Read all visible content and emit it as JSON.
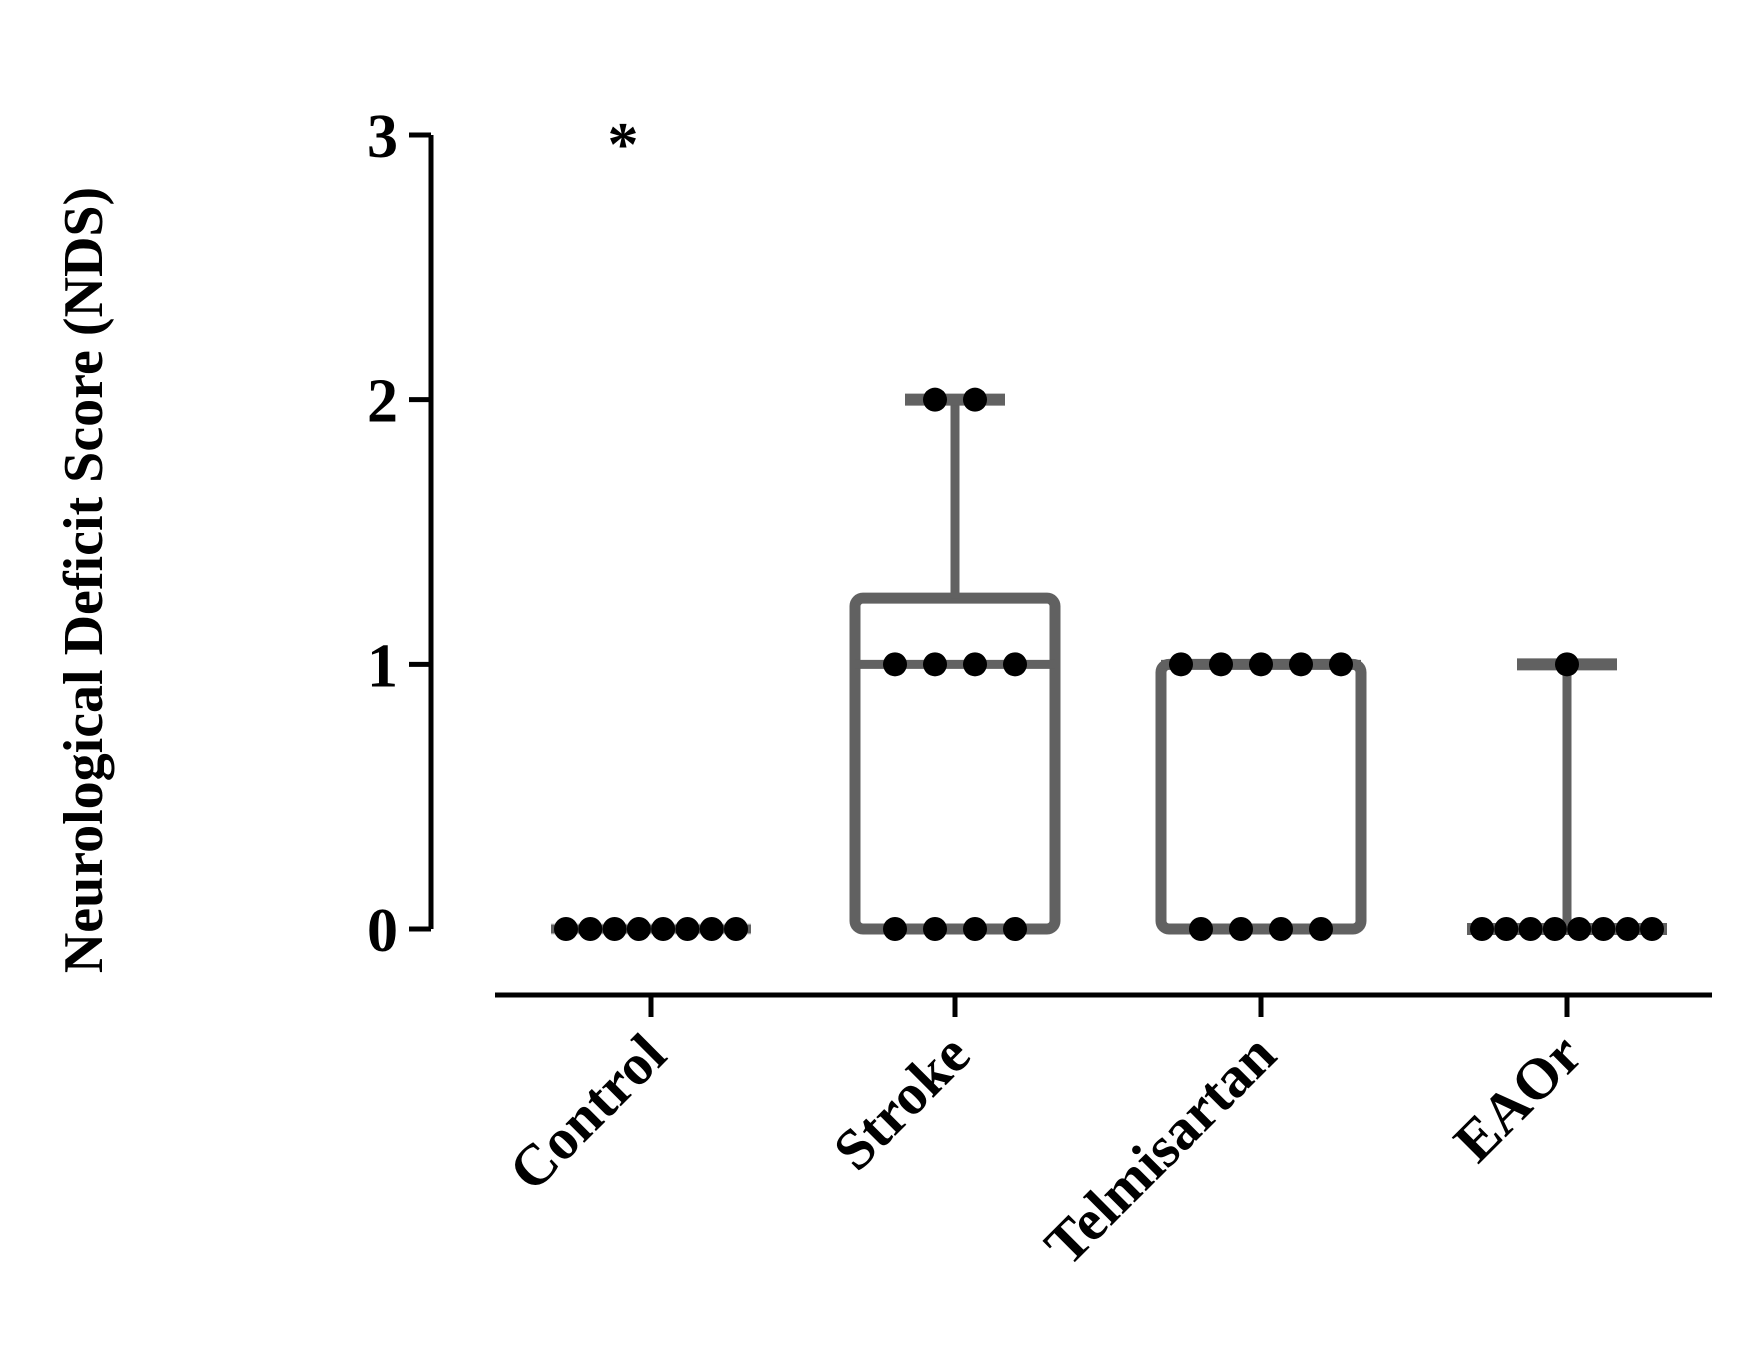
{
  "chart_data": {
    "type": "box",
    "ylabel": "Neurological Deficit Score (NDS)",
    "xlabel": "",
    "ylim": [
      0,
      3
    ],
    "yticks": [
      0,
      1,
      2,
      3
    ],
    "categories": [
      "Control",
      "Stroke",
      "Telmisartan",
      "EAOr"
    ],
    "annotations": [
      {
        "category": "Control",
        "text": "*",
        "y": 3
      }
    ],
    "grid": false,
    "legend": "none",
    "box_color": "#616161",
    "point_color": "#000000",
    "groups": [
      {
        "name": "Control",
        "min": 0,
        "q1": 0,
        "median": 0,
        "q3": 0,
        "max": 0,
        "points": [
          0,
          0,
          0,
          0,
          0,
          0,
          0,
          0
        ]
      },
      {
        "name": "Stroke",
        "min": 0,
        "q1": 0,
        "median": 1,
        "q3": 1.25,
        "max": 2,
        "points": [
          2,
          2,
          1,
          1,
          1,
          1,
          0,
          0,
          0,
          0
        ]
      },
      {
        "name": "Telmisartan",
        "min": 0,
        "q1": 0,
        "median": 1,
        "q3": 1,
        "max": 1,
        "points": [
          1,
          1,
          1,
          1,
          1,
          0,
          0,
          0,
          0
        ]
      },
      {
        "name": "EAOr",
        "min": 0,
        "q1": 0,
        "median": 0,
        "q3": 0,
        "max": 1,
        "points": [
          1,
          0,
          0,
          0,
          0,
          0,
          0,
          0,
          0
        ]
      }
    ]
  }
}
